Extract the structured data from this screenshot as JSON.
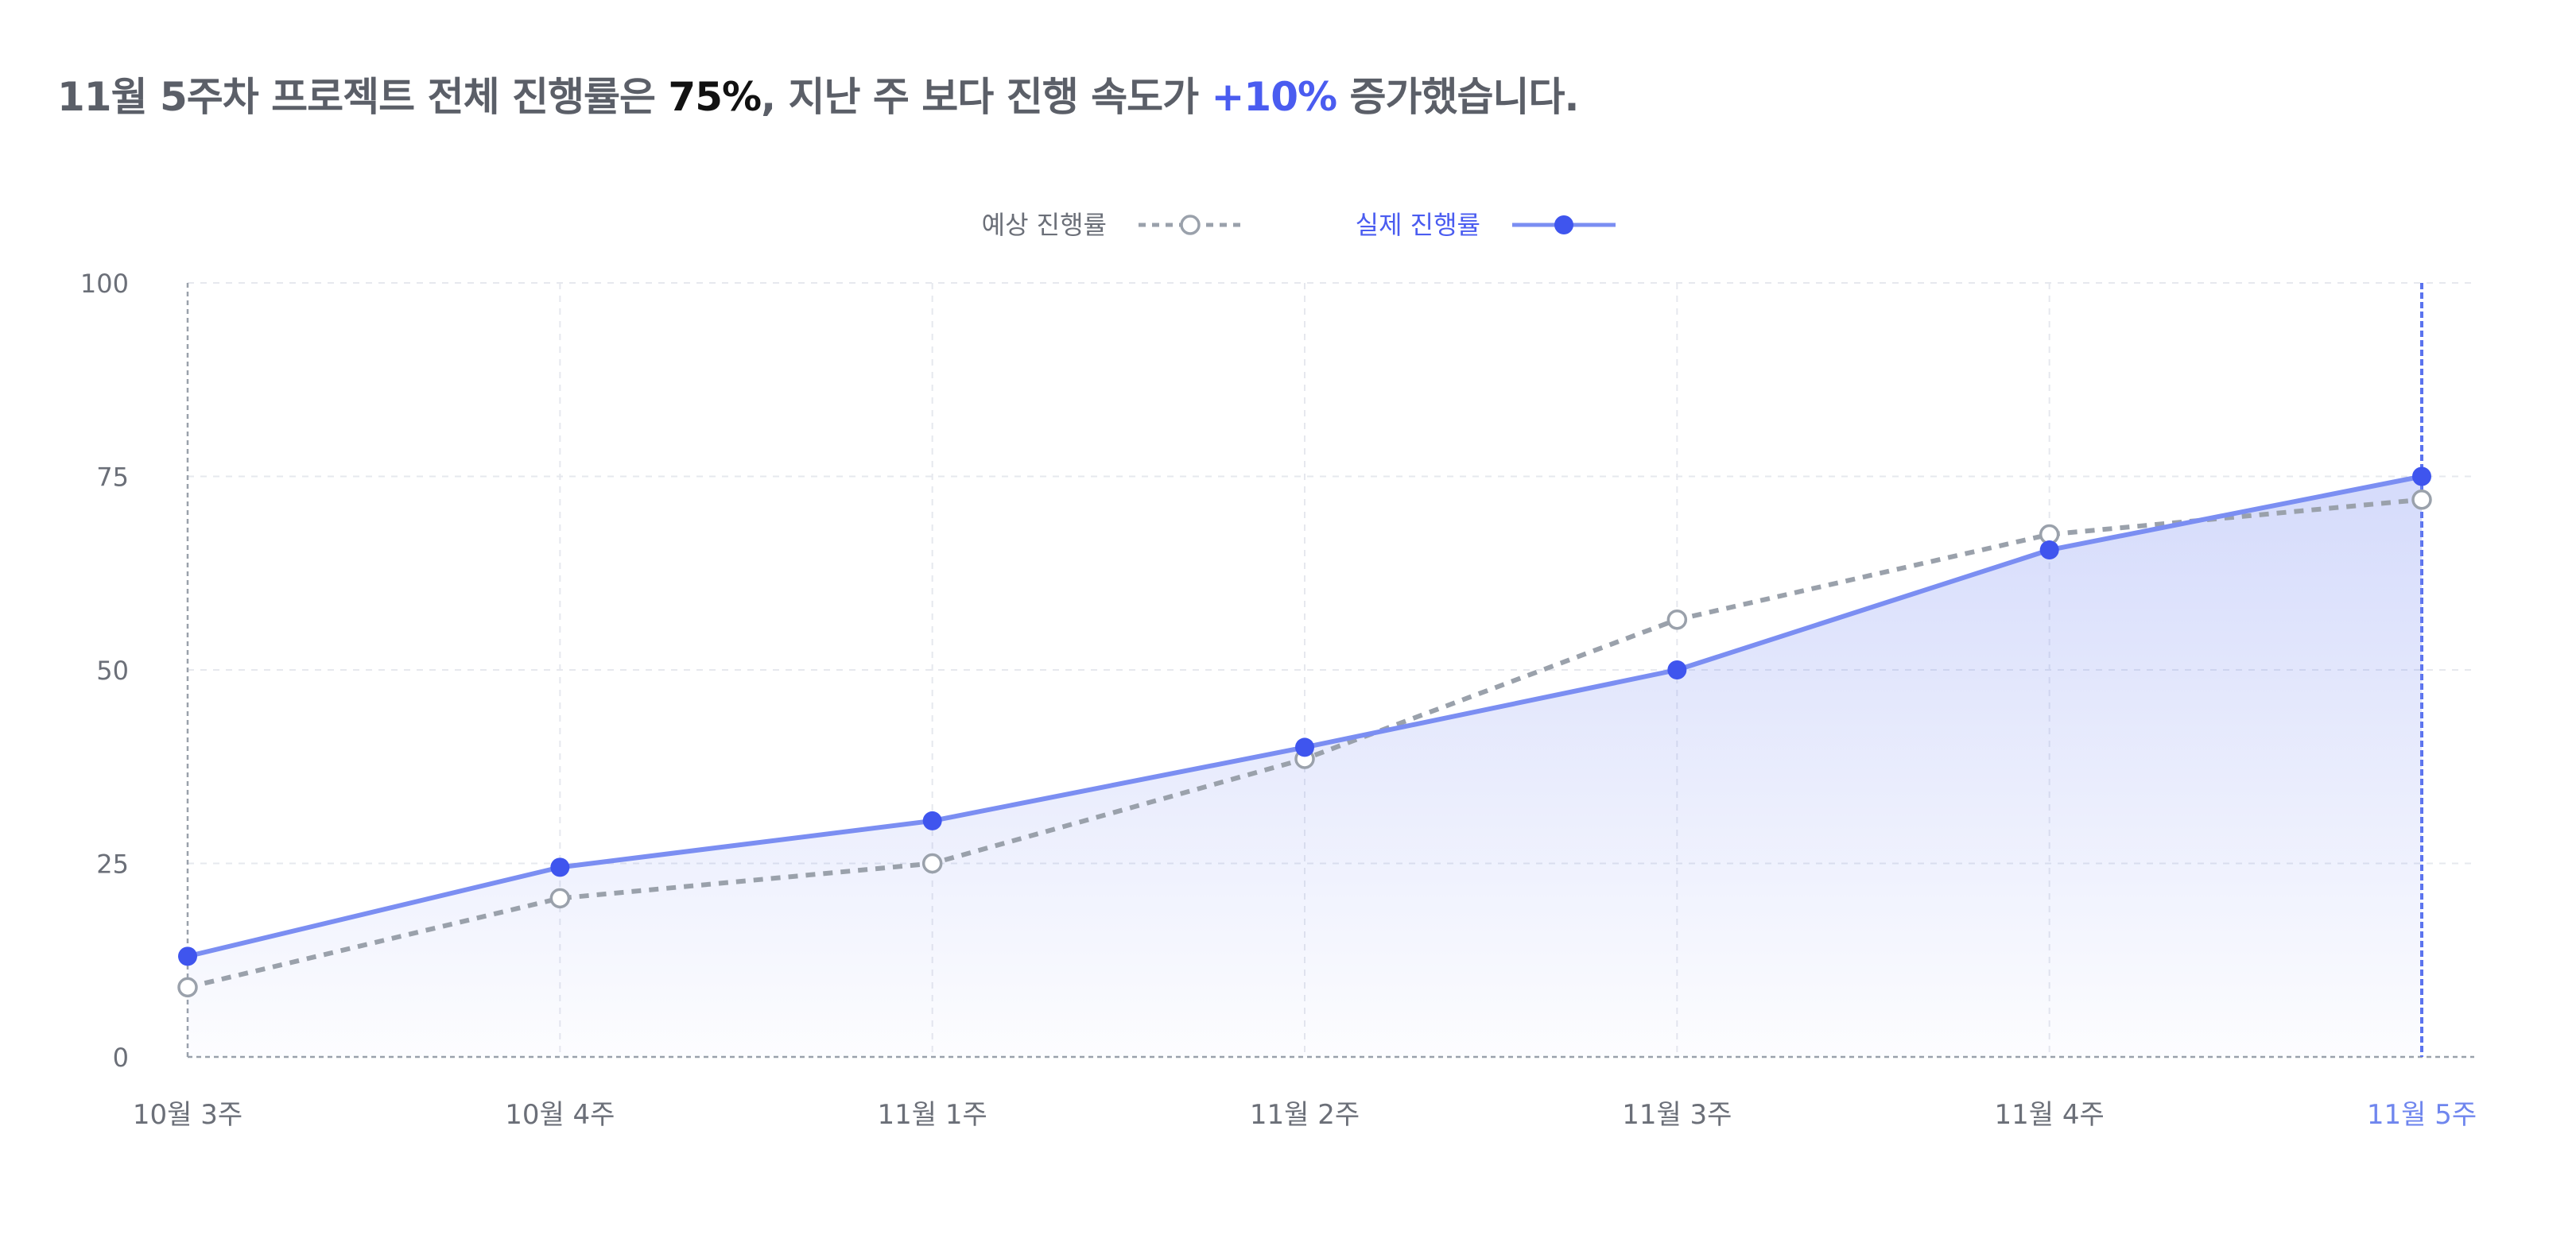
{
  "headline": {
    "part1": "11월 5주차 프로젝트 전체 진행률은 ",
    "value": "75%",
    "part2": ", 지난 주 보다 진행 속도가 ",
    "change": "+10%",
    "part3": " 증가했습니다."
  },
  "colors": {
    "actual": "#7b8ef2",
    "actual_dot": "#3f55ee",
    "expected": "#9aa1ab",
    "grid": "#e6e8ee",
    "axis_text": "#6b6f78",
    "highlight_label": "#6f86ee"
  },
  "chart_data": {
    "type": "line",
    "title": "",
    "xlabel": "",
    "ylabel": "",
    "categories": [
      "10월 3주",
      "10월 4주",
      "11월 1주",
      "11월 2주",
      "11월 3주",
      "11월 4주",
      "11월 5주"
    ],
    "ylim": [
      0,
      100
    ],
    "yticks": [
      0,
      25,
      50,
      75,
      100
    ],
    "grid": true,
    "legend_position": "top-center",
    "highlight_category": "11월 5주",
    "series": [
      {
        "name": "예상 진행률",
        "style": "dashed",
        "marker": "hollow-circle",
        "values": [
          9,
          20.5,
          25,
          38.5,
          56.5,
          67.5,
          72
        ]
      },
      {
        "name": "실제 진행률",
        "style": "solid",
        "marker": "filled-circle",
        "area": true,
        "values": [
          13,
          24.5,
          30.5,
          40,
          50,
          65.5,
          75
        ]
      }
    ]
  }
}
